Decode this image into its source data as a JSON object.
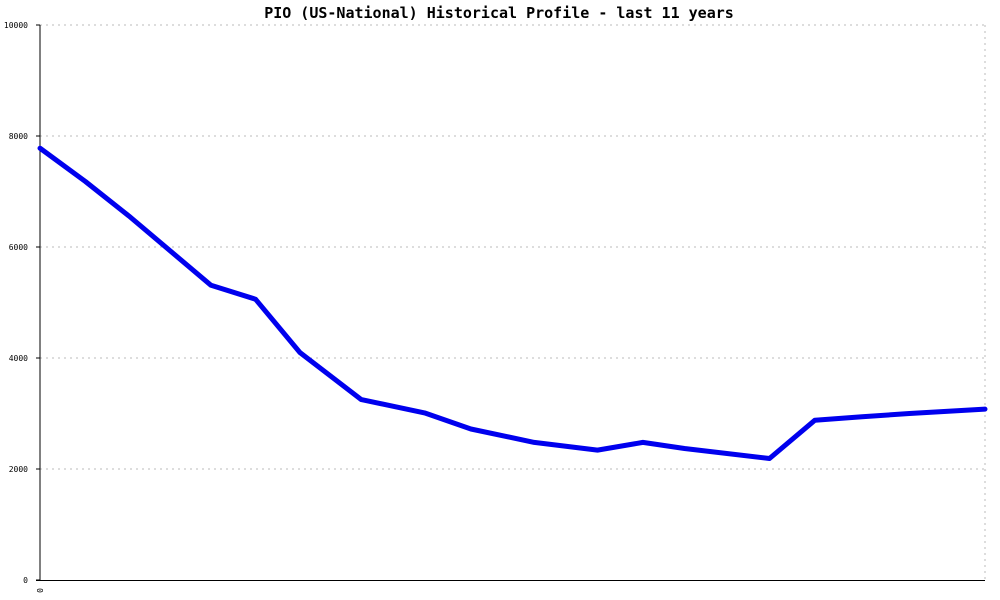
{
  "chart_data": {
    "type": "line",
    "title": "PIO (US-National) Historical Profile - last 11 years",
    "xlabel": "",
    "ylabel": "",
    "ylim": [
      0,
      10000
    ],
    "yticks": [
      "0",
      "2000",
      "4000",
      "6000",
      "8000",
      "10000"
    ],
    "xticks": [
      "0"
    ],
    "grid": true,
    "series_color": "#0000ee",
    "x": [
      0,
      0.048,
      0.094,
      0.181,
      0.228,
      0.275,
      0.34,
      0.407,
      0.456,
      0.523,
      0.59,
      0.638,
      0.682,
      0.772,
      0.82,
      0.87,
      0.92,
      1.0
    ],
    "values": [
      7780,
      7180,
      6560,
      5310,
      5060,
      4100,
      3250,
      3010,
      2720,
      2480,
      2340,
      2480,
      2370,
      2190,
      2880,
      2940,
      3000,
      3080
    ]
  }
}
